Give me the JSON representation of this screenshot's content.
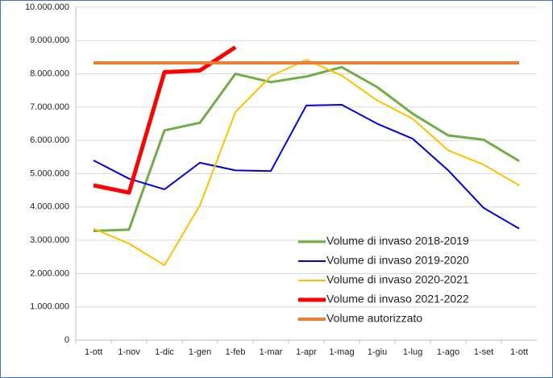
{
  "chart_data": {
    "type": "line",
    "categories": [
      "1-ott",
      "1-nov",
      "1-dic",
      "1-gen",
      "1-feb",
      "1-mar",
      "1-apr",
      "1-mag",
      "1-giu",
      "1-lug",
      "1-ago",
      "1-set",
      "1-ott"
    ],
    "series": [
      {
        "name": "Volume di invaso 2018-2019",
        "color": "#70ad47",
        "width": 3,
        "values": [
          3280000,
          3320000,
          6300000,
          6530000,
          8000000,
          7750000,
          7920000,
          8200000,
          7600000,
          6800000,
          6150000,
          6020000,
          5380000
        ]
      },
      {
        "name": "Volume di invaso 2019-2020",
        "color": "#0000dd",
        "width": 2,
        "values": [
          5400000,
          4850000,
          4530000,
          5330000,
          5100000,
          5080000,
          7050000,
          7070000,
          6500000,
          6050000,
          5100000,
          3970000,
          3350000
        ]
      },
      {
        "name": "Volume di invaso 2020-2021",
        "color": "#ffc000",
        "width": 2,
        "values": [
          3350000,
          2900000,
          2250000,
          4050000,
          6850000,
          7930000,
          8420000,
          7950000,
          7200000,
          6650000,
          5700000,
          5270000,
          4650000
        ]
      },
      {
        "name": "Volume di invaso 2021-2022",
        "color": "#ff0000",
        "width": 5,
        "values": [
          4650000,
          4430000,
          8050000,
          8100000,
          8800000,
          null,
          null,
          null,
          null,
          null,
          null,
          null,
          null
        ]
      },
      {
        "name": "Volume autorizzato",
        "color": "#ed7d31",
        "width": 4,
        "values": [
          8330000,
          8330000,
          8330000,
          8330000,
          8330000,
          8330000,
          8330000,
          8330000,
          8330000,
          8330000,
          8330000,
          8330000,
          8330000
        ]
      }
    ],
    "ylim": [
      0,
      10000000
    ],
    "yticks": [
      0,
      {
        "value": 1000000,
        "label": "1.000.000"
      },
      {
        "value": 2000000,
        "label": "2.000.000"
      },
      {
        "value": 3000000,
        "label": "3.000.000"
      },
      {
        "value": 4000000,
        "label": "4.000.000"
      },
      {
        "value": 5000000,
        "label": "5.000.000"
      },
      {
        "value": 6000000,
        "label": "6.000.000"
      },
      {
        "value": 7000000,
        "label": "7.000.000"
      },
      {
        "value": 8000000,
        "label": "8.000.000"
      },
      {
        "value": 9000000,
        "label": "9.000.000"
      },
      {
        "value": 10000000,
        "label": "10.000.000"
      }
    ],
    "grid": true,
    "legend": "lower right"
  }
}
